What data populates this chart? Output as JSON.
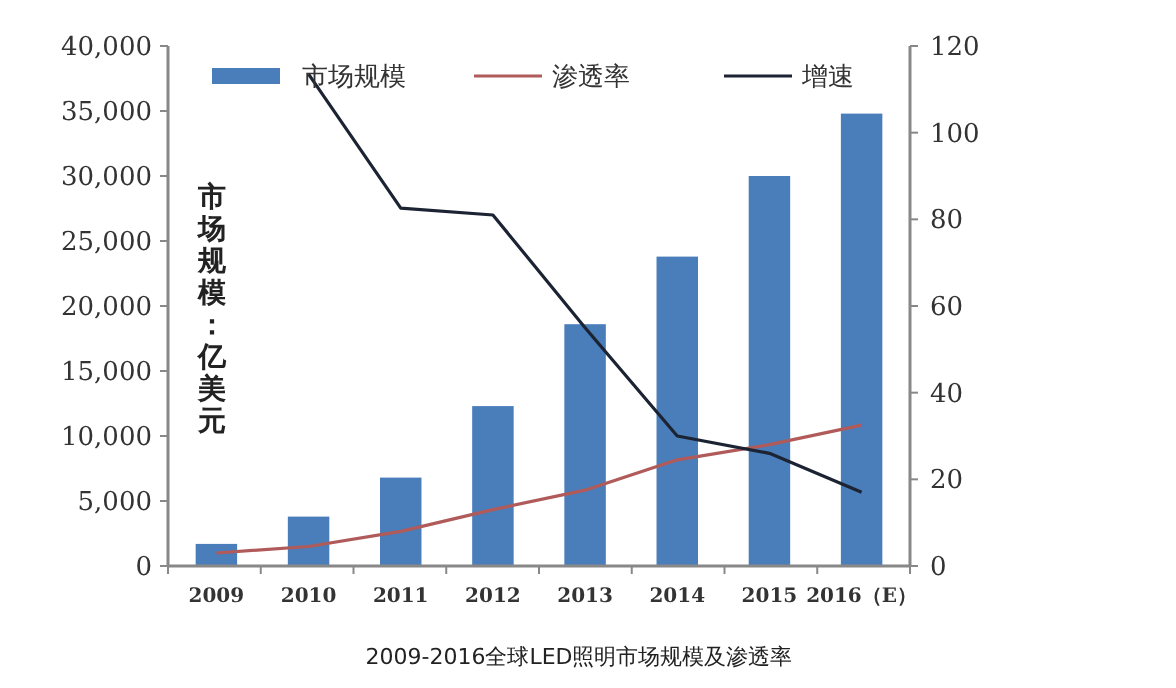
{
  "chart_data": {
    "type": "bar",
    "title": "2009-2016全球LED照明市场规模及渗透率",
    "ylabel": "市场规模：亿美元",
    "categories": [
      "2009",
      "2010",
      "2011",
      "2012",
      "2013",
      "2014",
      "2015",
      "2016（E）"
    ],
    "series": [
      {
        "name": "市场规模",
        "color": "#4a7ebb",
        "values": [
          1700,
          3800,
          6800,
          12300,
          18600,
          23800,
          30000,
          34800
        ]
      },
      {
        "name": "渗透率",
        "type": "line",
        "axis": "y2",
        "color": "#b05a5a",
        "values": [
          3,
          4.5,
          8,
          13,
          17.5,
          24.5,
          28,
          32.5
        ]
      },
      {
        "name": "增速",
        "type": "line",
        "axis": "y2",
        "color": "#1c2333",
        "values": [
          null,
          113.5,
          82.6,
          81,
          55,
          30,
          26,
          17
        ]
      }
    ],
    "ylim": [
      0,
      40000
    ],
    "yticks": [
      {
        "value": 0,
        "label": "0"
      },
      {
        "value": 5000,
        "label": "5,000"
      },
      {
        "value": 10000,
        "label": "10,000"
      },
      {
        "value": 15000,
        "label": "15,000"
      },
      {
        "value": 20000,
        "label": "20,000"
      },
      {
        "value": 25000,
        "label": "25,000"
      },
      {
        "value": 30000,
        "label": "30,000"
      },
      {
        "value": 35000,
        "label": "35,000"
      },
      {
        "value": 40000,
        "label": "40,000"
      }
    ],
    "y2lim": [
      0,
      120
    ],
    "y2ticks": [
      0,
      20,
      40,
      60,
      80,
      100,
      120
    ],
    "legend": "top",
    "grid": false,
    "marker": "none"
  }
}
